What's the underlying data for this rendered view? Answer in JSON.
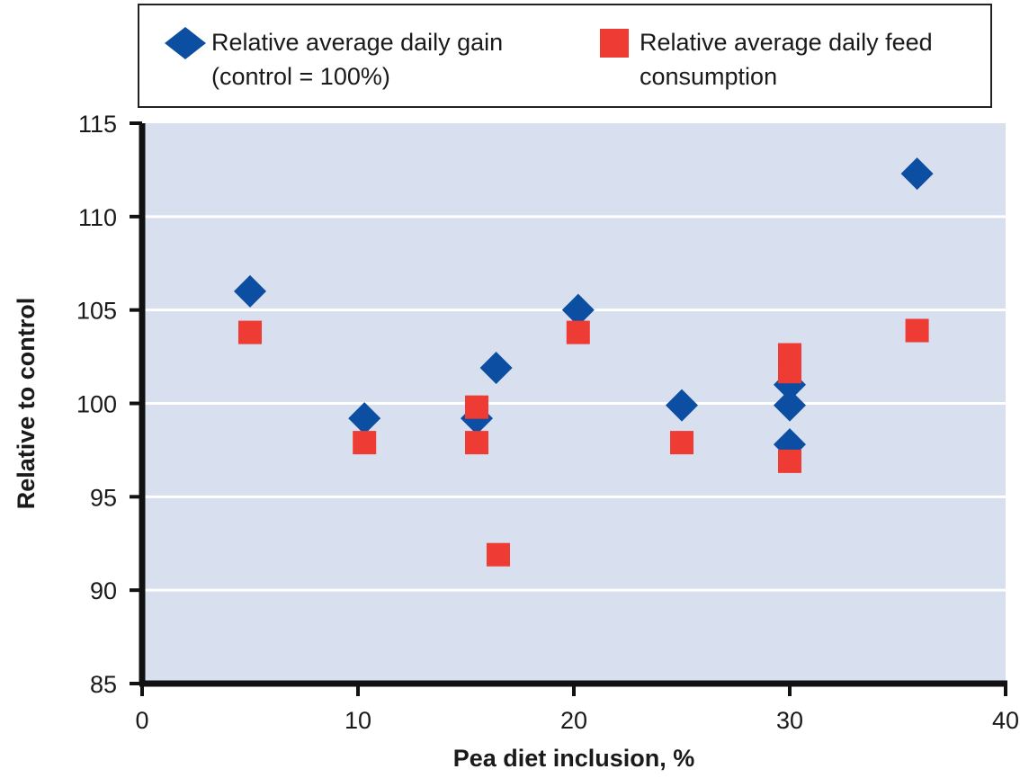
{
  "chart_data": {
    "type": "scatter",
    "xlabel": "Pea diet inclusion, %",
    "ylabel": "Relative to control",
    "xlim": [
      0,
      40
    ],
    "ylim": [
      85,
      115
    ],
    "xticks": [
      "0",
      "10",
      "20",
      "30",
      "40"
    ],
    "yticks": [
      "85",
      "90",
      "95",
      "100",
      "105",
      "110",
      "115"
    ],
    "grid": "horizontal",
    "legend_position": "top",
    "series": [
      {
        "name": "Relative average daily gain (control = 100%)",
        "marker": "diamond",
        "color": "#0b4ea2",
        "points": [
          [
            5,
            106
          ],
          [
            10.3,
            99.2
          ],
          [
            15.5,
            99.2
          ],
          [
            16.4,
            101.9
          ],
          [
            20.2,
            105
          ],
          [
            25,
            99.9
          ],
          [
            30,
            101
          ],
          [
            30,
            99.9
          ],
          [
            30,
            97.8
          ],
          [
            35.9,
            112.3
          ]
        ]
      },
      {
        "name": "Relative average daily feed consumption",
        "marker": "square",
        "color": "#ee3b33",
        "points": [
          [
            5,
            103.8
          ],
          [
            10.3,
            97.9
          ],
          [
            15.5,
            99.8
          ],
          [
            15.5,
            97.9
          ],
          [
            16.5,
            91.9
          ],
          [
            20.2,
            103.8
          ],
          [
            25,
            97.9
          ],
          [
            30,
            102.6
          ],
          [
            30,
            101.7
          ],
          [
            30,
            96.9
          ],
          [
            35.9,
            103.9
          ]
        ]
      }
    ]
  },
  "legend": {
    "gain_line1": "Relative average daily gain",
    "gain_line2": "(control = 100%)",
    "feed_line1": "Relative average daily feed",
    "feed_line2": "consumption"
  }
}
